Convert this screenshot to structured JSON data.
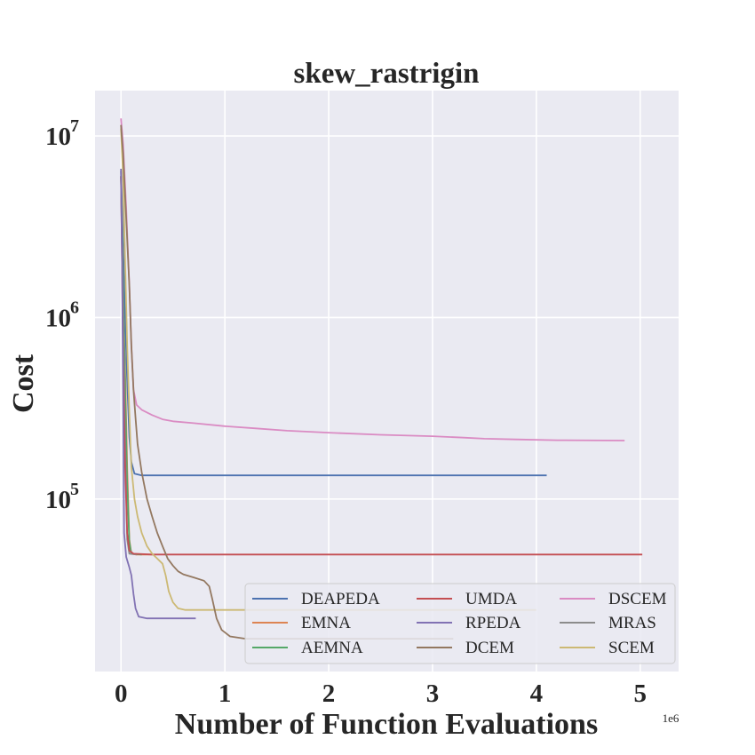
{
  "chart_data": {
    "type": "line",
    "title": "skew_rastrigin",
    "xlabel": "Number of Function Evaluations",
    "ylabel": "Cost",
    "x_offset_label": "1e6",
    "x_scale": "linear",
    "y_scale": "log",
    "xlim": [
      -0.25,
      5.37
    ],
    "ylim_log10": [
      4.05,
      7.25
    ],
    "x_ticks": [
      0,
      1,
      2,
      3,
      4,
      5
    ],
    "y_ticks": [
      {
        "base": "10",
        "exp": "5",
        "log": 5
      },
      {
        "base": "10",
        "exp": "6",
        "log": 6
      },
      {
        "base": "10",
        "exp": "7",
        "log": 7
      }
    ],
    "grid": true,
    "legend_position": "lower-right",
    "series": [
      {
        "name": "DEAPEDA",
        "color": "#4c72b0",
        "points": [
          [
            0,
            6400000
          ],
          [
            0.02,
            2500000
          ],
          [
            0.04,
            1000000
          ],
          [
            0.06,
            450000
          ],
          [
            0.08,
            220000
          ],
          [
            0.1,
            160000
          ],
          [
            0.13,
            138000
          ],
          [
            0.2,
            135000
          ],
          [
            1,
            135000
          ],
          [
            2,
            135000
          ],
          [
            3,
            135000
          ],
          [
            4.1,
            135000
          ]
        ]
      },
      {
        "name": "EMNA",
        "color": "#dd8452",
        "points": [
          [
            0,
            6000000
          ],
          [
            0.01,
            3000000
          ],
          [
            0.02,
            1200000
          ],
          [
            0.04,
            500000
          ],
          [
            0.06,
            150000
          ],
          [
            0.08,
            60000
          ],
          [
            0.1,
            50000
          ],
          [
            0.15,
            49500
          ],
          [
            0.3,
            49500
          ]
        ]
      },
      {
        "name": "AEMNA",
        "color": "#55a868",
        "points": [
          [
            0,
            6000000
          ],
          [
            0.02,
            1500000
          ],
          [
            0.04,
            400000
          ],
          [
            0.06,
            120000
          ],
          [
            0.08,
            58000
          ],
          [
            0.1,
            50000
          ],
          [
            0.2,
            49500
          ]
        ]
      },
      {
        "name": "UMDA",
        "color": "#c44e52",
        "points": [
          [
            0,
            6000000
          ],
          [
            0.01,
            2000000
          ],
          [
            0.02,
            600000
          ],
          [
            0.04,
            150000
          ],
          [
            0.06,
            65000
          ],
          [
            0.08,
            52000
          ],
          [
            0.12,
            50000
          ],
          [
            0.3,
            49500
          ],
          [
            1,
            49500
          ],
          [
            2,
            49500
          ],
          [
            3,
            49500
          ],
          [
            4,
            49500
          ],
          [
            5.02,
            49500
          ]
        ]
      },
      {
        "name": "RPEDA",
        "color": "#8172b3",
        "points": [
          [
            0,
            6600000
          ],
          [
            0.01,
            2000000
          ],
          [
            0.02,
            400000
          ],
          [
            0.03,
            65000
          ],
          [
            0.05,
            48000
          ],
          [
            0.08,
            42000
          ],
          [
            0.1,
            38000
          ],
          [
            0.12,
            30000
          ],
          [
            0.14,
            25000
          ],
          [
            0.17,
            22500
          ],
          [
            0.25,
            22000
          ],
          [
            0.5,
            22000
          ],
          [
            0.72,
            22000
          ]
        ]
      },
      {
        "name": "DCEM",
        "color": "#937860",
        "points": [
          [
            0,
            11500000
          ],
          [
            0.02,
            8000000
          ],
          [
            0.05,
            3500000
          ],
          [
            0.08,
            1500000
          ],
          [
            0.1,
            700000
          ],
          [
            0.12,
            400000
          ],
          [
            0.14,
            280000
          ],
          [
            0.16,
            200000
          ],
          [
            0.2,
            140000
          ],
          [
            0.25,
            100000
          ],
          [
            0.3,
            80000
          ],
          [
            0.35,
            65000
          ],
          [
            0.4,
            55000
          ],
          [
            0.45,
            47000
          ],
          [
            0.5,
            43000
          ],
          [
            0.55,
            40000
          ],
          [
            0.6,
            38500
          ],
          [
            0.7,
            37000
          ],
          [
            0.8,
            35500
          ],
          [
            0.85,
            33000
          ],
          [
            0.88,
            28000
          ],
          [
            0.92,
            22000
          ],
          [
            0.97,
            19000
          ],
          [
            1.05,
            17500
          ],
          [
            1.2,
            17000
          ],
          [
            1.5,
            17000
          ],
          [
            2,
            17000
          ],
          [
            3,
            17000
          ],
          [
            3.2,
            17000
          ]
        ]
      },
      {
        "name": "DSCEM",
        "color": "#da8bc3",
        "points": [
          [
            0,
            12500000
          ],
          [
            0.02,
            9000000
          ],
          [
            0.05,
            4000000
          ],
          [
            0.08,
            1500000
          ],
          [
            0.1,
            700000
          ],
          [
            0.12,
            400000
          ],
          [
            0.15,
            330000
          ],
          [
            0.2,
            310000
          ],
          [
            0.3,
            290000
          ],
          [
            0.4,
            275000
          ],
          [
            0.5,
            268000
          ],
          [
            0.7,
            262000
          ],
          [
            1,
            252000
          ],
          [
            1.3,
            245000
          ],
          [
            1.6,
            238000
          ],
          [
            2,
            232000
          ],
          [
            2.5,
            226000
          ],
          [
            3,
            222000
          ],
          [
            3.3,
            218000
          ],
          [
            3.5,
            215000
          ],
          [
            3.8,
            213000
          ],
          [
            4.2,
            211000
          ],
          [
            4.85,
            210000
          ]
        ]
      },
      {
        "name": "MRAS",
        "color": "#8c8c8c",
        "points": [
          [
            0,
            6000000
          ],
          [
            0.02,
            1000000
          ],
          [
            0.04,
            200000
          ],
          [
            0.06,
            60000
          ],
          [
            0.08,
            50000
          ],
          [
            0.15,
            49500
          ]
        ]
      },
      {
        "name": "SCEM",
        "color": "#ccb974",
        "points": [
          [
            0,
            11000000
          ],
          [
            0.02,
            6000000
          ],
          [
            0.04,
            2000000
          ],
          [
            0.06,
            700000
          ],
          [
            0.08,
            300000
          ],
          [
            0.1,
            150000
          ],
          [
            0.13,
            100000
          ],
          [
            0.16,
            80000
          ],
          [
            0.2,
            65000
          ],
          [
            0.25,
            55000
          ],
          [
            0.3,
            50000
          ],
          [
            0.35,
            47000
          ],
          [
            0.4,
            44000
          ],
          [
            0.43,
            38000
          ],
          [
            0.46,
            31000
          ],
          [
            0.5,
            27000
          ],
          [
            0.55,
            25000
          ],
          [
            0.62,
            24500
          ],
          [
            0.8,
            24500
          ],
          [
            1.5,
            24500
          ],
          [
            2,
            24500
          ],
          [
            2.5,
            24500
          ],
          [
            3,
            24500
          ],
          [
            3.5,
            24500
          ],
          [
            4,
            24500
          ]
        ]
      }
    ]
  }
}
